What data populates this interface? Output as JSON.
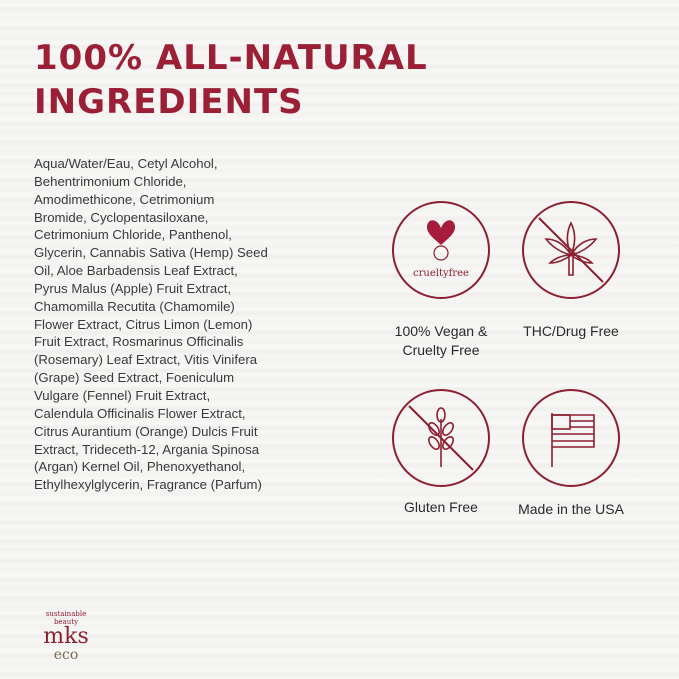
{
  "title_lines": [
    "100% ALL-NATURAL",
    "INGREDIENTS"
  ],
  "ingredients": [
    "Aqua/Water/Eau, Cetyl Alcohol,",
    "Behentrimonium Chloride,",
    "Amodimethicone, Cetrimonium",
    "Bromide, Cyclopentasiloxane,",
    "Cetrimonium Chloride, Panthenol,",
    "Glycerin, Cannabis Sativa (Hemp) Seed",
    "Oil, Aloe Barbadensis Leaf Extract,",
    "Pyrus Malus (Apple) Fruit Extract,",
    "Chamomilla Recutita (Chamomile)",
    "Flower Extract, Citrus Limon (Lemon)",
    "Fruit Extract, Rosmarinus Officinalis",
    "(Rosemary) Leaf Extract, Vitis Vinifera",
    "(Grape) Seed Extract, Foeniculum",
    "Vulgare (Fennel) Fruit Extract,",
    "Calendula Officinalis Flower Extract,",
    "Citrus Aurantium (Orange) Dulcis Fruit",
    "Extract, Trideceth-12, Argania Spinosa",
    "(Argan) Kernel Oil, Phenoxyethanol,",
    "Ethylhexylglycerin, Fragrance (Parfum)"
  ],
  "badges": [
    {
      "icon": "cruelty-free-bunny-icon",
      "icon_text": "crueltyfree",
      "label_lines": [
        "100% Vegan &",
        "Cruelty Free"
      ]
    },
    {
      "icon": "no-cannabis-leaf-icon",
      "label_lines": [
        "THC/Drug Free"
      ]
    },
    {
      "icon": "no-wheat-icon",
      "label_lines": [
        "Gluten Free"
      ]
    },
    {
      "icon": "usa-flag-icon",
      "label_lines": [
        "Made in the USA"
      ]
    }
  ],
  "logo": {
    "tagline": "sustainable beauty",
    "name": "mks",
    "sub": "eco"
  },
  "colors": {
    "accent": "#9b1f35",
    "text": "#333333"
  }
}
